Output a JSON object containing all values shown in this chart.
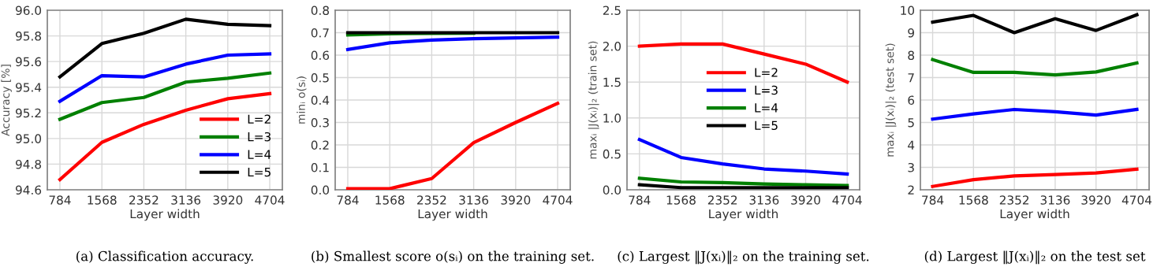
{
  "chart_data": [
    {
      "type": "line",
      "xlabel": "Layer width",
      "ylabel": "Accuracy [%]",
      "categories": [
        "784",
        "1568",
        "2352",
        "3136",
        "3920",
        "4704"
      ],
      "grid": true,
      "legend": "bottom right",
      "ylim": [
        94.6,
        96.0
      ],
      "yticks": [
        {
          "value": 94.6,
          "label": "94.6"
        },
        {
          "value": 94.8,
          "label": "94.8"
        },
        {
          "value": 95.0,
          "label": "95.0"
        },
        {
          "value": 95.2,
          "label": "95.2"
        },
        {
          "value": 95.4,
          "label": "95.4"
        },
        {
          "value": 95.6,
          "label": "95.6"
        },
        {
          "value": 95.8,
          "label": "95.8"
        },
        {
          "value": 96.0,
          "label": "96.0"
        }
      ],
      "series": [
        {
          "name": "L=2",
          "color": "#ff0000",
          "values": [
            94.68,
            94.97,
            95.11,
            95.22,
            95.31,
            95.35
          ]
        },
        {
          "name": "L=3",
          "color": "#008000",
          "values": [
            95.15,
            95.28,
            95.32,
            95.44,
            95.47,
            95.51
          ]
        },
        {
          "name": "L=4",
          "color": "#0000ff",
          "values": [
            95.29,
            95.49,
            95.48,
            95.58,
            95.65,
            95.66
          ]
        },
        {
          "name": "L=5",
          "color": "#000000",
          "values": [
            95.48,
            95.74,
            95.82,
            95.93,
            95.89,
            95.88
          ]
        }
      ],
      "annotations": [
        "(a) Classification accuracy."
      ]
    },
    {
      "type": "line",
      "xlabel": "Layer width",
      "ylabel": "minᵢ o(sᵢ)",
      "categories": [
        "784",
        "1568",
        "2352",
        "3136",
        "3920",
        "4704"
      ],
      "grid": true,
      "ylim": [
        0,
        0.8
      ],
      "yticks": [
        {
          "value": 0,
          "label": "0.0"
        },
        0.1,
        0.2,
        0.3,
        0.4,
        0.5,
        0.6,
        0.7,
        0.8
      ],
      "series": [
        {
          "color": "#ff0000",
          "values": [
            0.005,
            0.005,
            0.05,
            0.21,
            0.3,
            0.385
          ]
        },
        {
          "color": "#0000ff",
          "values": [
            0.625,
            0.655,
            0.667,
            0.673,
            0.677,
            0.68
          ]
        },
        {
          "color": "#008000",
          "values": [
            0.69,
            0.695,
            0.697,
            0.698,
            null,
            null
          ]
        },
        {
          "color": "#000000",
          "values": [
            0.7,
            0.7,
            0.7,
            0.7,
            0.7,
            0.7
          ]
        }
      ],
      "annotations": [
        "(b) Smallest score o(sᵢ) on the training set."
      ]
    },
    {
      "type": "line",
      "xlabel": "Layer width",
      "ylabel": "maxᵢ |J(xᵢ)|₂ (train set)",
      "categories": [
        "784",
        "1568",
        "2352",
        "3136",
        "3920",
        "4704"
      ],
      "grid": true,
      "legend": "center",
      "ylim": [
        0,
        2.5
      ],
      "yticks": [
        {
          "value": 0,
          "label": "0.0"
        },
        0.5,
        {
          "value": 1,
          "label": "1.0"
        },
        1.5,
        {
          "value": 2,
          "label": "2.0"
        },
        2.5
      ],
      "series": [
        {
          "name": "L=2",
          "color": "#ff0000",
          "values": [
            2.0,
            2.03,
            2.03,
            1.89,
            1.75,
            1.5
          ]
        },
        {
          "name": "L=3",
          "color": "#0000ff",
          "values": [
            0.7,
            0.45,
            0.36,
            0.29,
            0.26,
            0.22
          ]
        },
        {
          "name": "L=4",
          "color": "#008000",
          "values": [
            0.16,
            0.11,
            0.1,
            0.08,
            0.07,
            0.06
          ]
        },
        {
          "name": "L=5",
          "color": "#000000",
          "values": [
            0.07,
            0.03,
            0.03,
            0.03,
            0.03,
            0.03
          ]
        }
      ],
      "annotations": [
        "(c) Largest ‖J(xᵢ)‖₂ on the training set."
      ]
    },
    {
      "type": "line",
      "xlabel": "Layer width",
      "ylabel": "maxᵢ |J(xᵢ)|₂ (test set)",
      "categories": [
        "784",
        "1568",
        "2352",
        "3136",
        "3920",
        "4704"
      ],
      "grid": true,
      "ylim": [
        2,
        10
      ],
      "yticks": [
        2,
        3,
        4,
        5,
        6,
        7,
        8,
        9,
        10
      ],
      "series": [
        {
          "color": "#ff0000",
          "values": [
            2.15,
            2.45,
            2.62,
            2.68,
            2.75,
            2.92
          ]
        },
        {
          "color": "#0000ff",
          "values": [
            5.15,
            5.38,
            5.58,
            5.48,
            5.33,
            5.58
          ]
        },
        {
          "color": "#008000",
          "values": [
            7.8,
            7.23,
            7.23,
            7.12,
            7.25,
            7.65
          ]
        },
        {
          "color": "#000000",
          "values": [
            9.47,
            9.77,
            9.0,
            9.62,
            9.1,
            9.8
          ]
        }
      ],
      "annotations": [
        "(d) Largest ‖J(xᵢ)‖₂ on the test set"
      ]
    }
  ]
}
